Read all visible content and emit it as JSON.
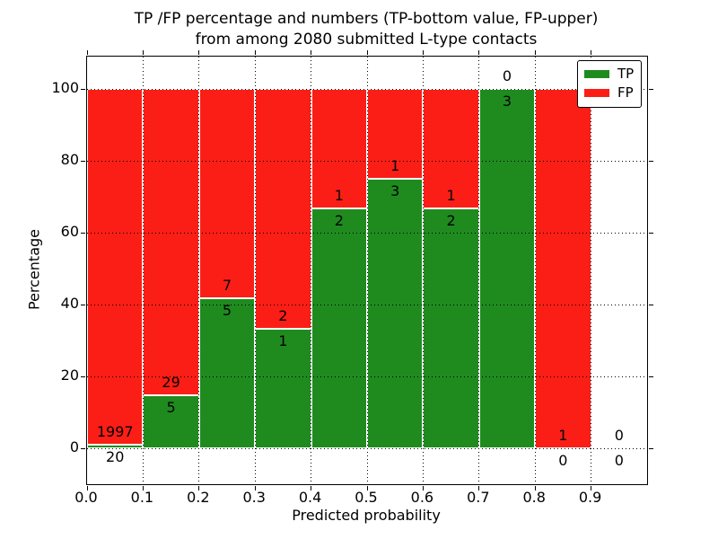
{
  "title": {
    "line1": "TP /FP percentage and numbers (TP-bottom value, FP-upper)",
    "line2": "from among 2080 submitted L-type contacts"
  },
  "colors": {
    "tp": "#1f8b1f",
    "fp": "#fb1e16",
    "grid": "#000000",
    "frame": "#000000",
    "background": "#ffffff"
  },
  "chart_data": {
    "type": "bar",
    "stacked": true,
    "title": "TP /FP percentage and numbers (TP-bottom value, FP-upper) from among 2080 submitted L-type contacts",
    "xlabel": "Predicted probability",
    "ylabel": "Percentage",
    "xlim": [
      0.0,
      1.0
    ],
    "ylim": [
      -10,
      109
    ],
    "grid": "dotted",
    "x_ticks": [
      "0.0",
      "0.1",
      "0.2",
      "0.3",
      "0.4",
      "0.5",
      "0.6",
      "0.7",
      "0.8",
      "0.9"
    ],
    "y_ticks": [
      "0",
      "20",
      "40",
      "60",
      "80",
      "100"
    ],
    "legend": {
      "position": "upper right",
      "entries": [
        {
          "label": "TP",
          "color": "#1f8b1f"
        },
        {
          "label": "FP",
          "color": "#fb1e16"
        }
      ]
    },
    "bins": [
      {
        "range": [
          0.0,
          0.1
        ],
        "tp": 20,
        "fp": 1997,
        "tp_pct": 0.99,
        "fp_pct": 99.01
      },
      {
        "range": [
          0.1,
          0.2
        ],
        "tp": 5,
        "fp": 29,
        "tp_pct": 14.71,
        "fp_pct": 85.29
      },
      {
        "range": [
          0.2,
          0.3
        ],
        "tp": 5,
        "fp": 7,
        "tp_pct": 41.67,
        "fp_pct": 58.33
      },
      {
        "range": [
          0.3,
          0.4
        ],
        "tp": 1,
        "fp": 2,
        "tp_pct": 33.33,
        "fp_pct": 66.67
      },
      {
        "range": [
          0.4,
          0.5
        ],
        "tp": 2,
        "fp": 1,
        "tp_pct": 66.67,
        "fp_pct": 33.33
      },
      {
        "range": [
          0.5,
          0.6
        ],
        "tp": 3,
        "fp": 1,
        "tp_pct": 75.0,
        "fp_pct": 25.0
      },
      {
        "range": [
          0.6,
          0.7
        ],
        "tp": 2,
        "fp": 1,
        "tp_pct": 66.67,
        "fp_pct": 33.33
      },
      {
        "range": [
          0.7,
          0.8
        ],
        "tp": 3,
        "fp": 0,
        "tp_pct": 100.0,
        "fp_pct": 0.0
      },
      {
        "range": [
          0.8,
          0.9
        ],
        "tp": 0,
        "fp": 1,
        "tp_pct": 0.0,
        "fp_pct": 100.0
      },
      {
        "range": [
          0.9,
          1.0
        ],
        "tp": 0,
        "fp": 0,
        "tp_pct": 0.0,
        "fp_pct": 0.0
      }
    ]
  }
}
